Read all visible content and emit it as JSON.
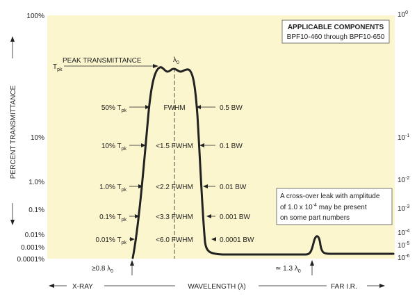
{
  "chart_data": {
    "type": "line",
    "title": "",
    "xlabel": "WAVELENGTH (λ)",
    "ylabel": "PERCENT TRANSMITTANCE",
    "x_band_left": "X-RAY",
    "x_band_right": "FAR I.R.",
    "y_left_ticks": [
      "100%",
      "10%",
      "1.0%",
      "0.1%",
      "0.01%",
      "0.001%",
      "0.0001%"
    ],
    "y_right_ticks": [
      {
        "base": "10",
        "exp": "0"
      },
      {
        "base": "10",
        "exp": "-1"
      },
      {
        "base": "10",
        "exp": "-2"
      },
      {
        "base": "10",
        "exp": "-3"
      },
      {
        "base": "10",
        "exp": "-4"
      },
      {
        "base": "10",
        "exp": "-5"
      },
      {
        "base": "10",
        "exp": "-6"
      }
    ],
    "components_box": {
      "title": "APPLICABLE COMPONENTS",
      "subtitle": "BPF10-460 through BPF10-650"
    },
    "peak_label": "PEAK TRANSMITTANCE",
    "tpk": {
      "base": "T",
      "sub": "pk"
    },
    "center_label": {
      "base": "λ",
      "sub": "0"
    },
    "levels": [
      {
        "left_pre": "50% ",
        "left_sub": "pk",
        "mid": "FWHM",
        "right": "0.5 BW"
      },
      {
        "left_pre": "10% ",
        "left_sub": "pk",
        "mid": "<1.5 FWHM",
        "right": "0.1 BW"
      },
      {
        "left_pre": "1.0% ",
        "left_sub": "pk",
        "mid": "<2.2 FWHM",
        "right": "0.01 BW"
      },
      {
        "left_pre": "0.1% ",
        "left_sub": "pk",
        "mid": "<3.3 FWHM",
        "right": "0.001 BW"
      },
      {
        "left_pre": "0.01% ",
        "left_sub": "pk",
        "mid": "<6.0 FWHM",
        "right": "0.0001 BW"
      }
    ],
    "leak_note": {
      "line1": "A cross-over leak with amplitude",
      "line2_pre": "of 1.0 x 10",
      "line2_exp": "-4",
      "line2_post": " may be present",
      "line3": "on some part numbers"
    },
    "left_marker": {
      "pre": "≥0.8 λ",
      "sub": "0"
    },
    "right_marker": {
      "pre": "≃ 1.3 λ",
      "sub": "0"
    },
    "colors": {
      "plot_bg": "#fcf6ce",
      "curve": "#222222",
      "box_bg": "#ffffff",
      "page_bg": "#ffffff"
    }
  }
}
